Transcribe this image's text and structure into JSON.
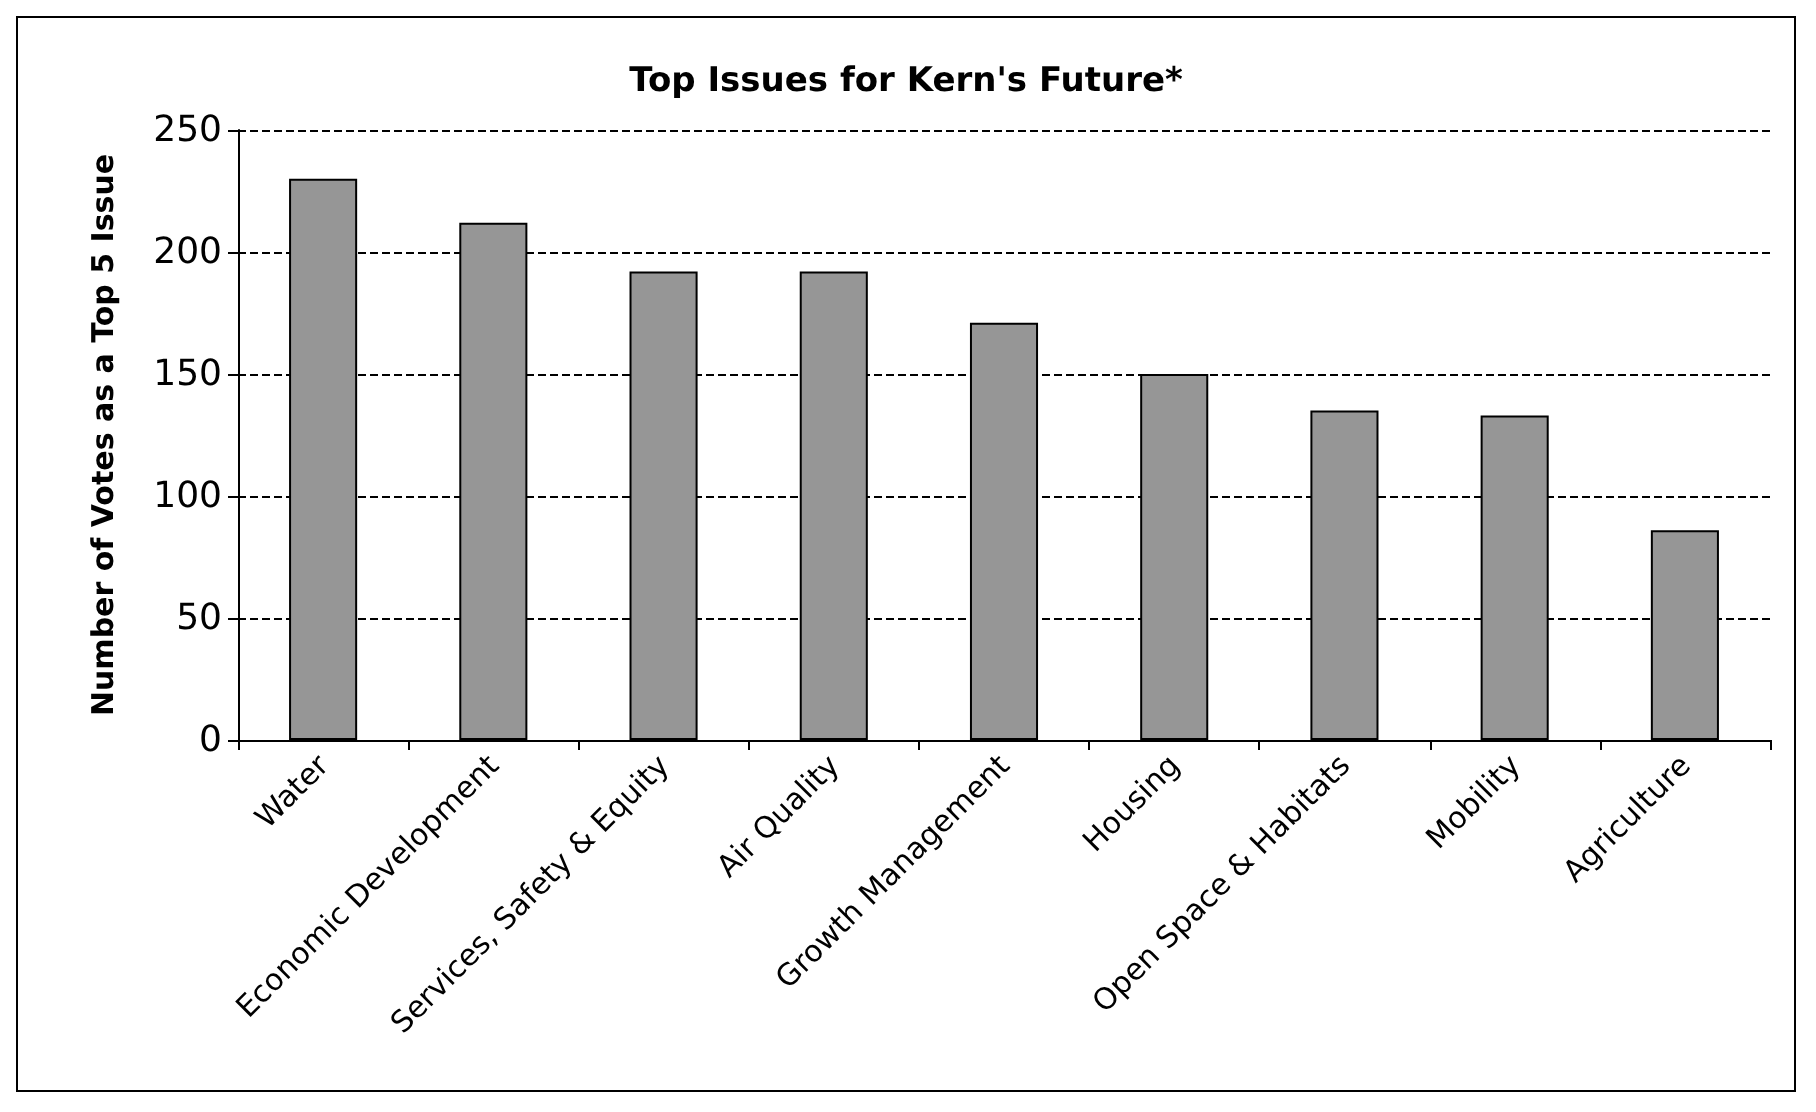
{
  "chart_data": {
    "type": "bar",
    "title": "Top Issues for Kern's Future*",
    "ylabel": "Number of Votes as a Top 5 Issue",
    "categories": [
      "Water",
      "Economic Development",
      "Services, Safety & Equity",
      "Air Quality",
      "Growth Management",
      "Housing",
      "Open Space & Habitats",
      "Mobility",
      "Agriculture"
    ],
    "values": [
      230,
      212,
      192,
      192,
      171,
      150,
      135,
      133,
      86
    ],
    "color": "#969696",
    "ylim": [
      0,
      250
    ],
    "yticks": [
      0,
      50,
      100,
      150,
      200,
      250
    ],
    "grid": "y"
  }
}
